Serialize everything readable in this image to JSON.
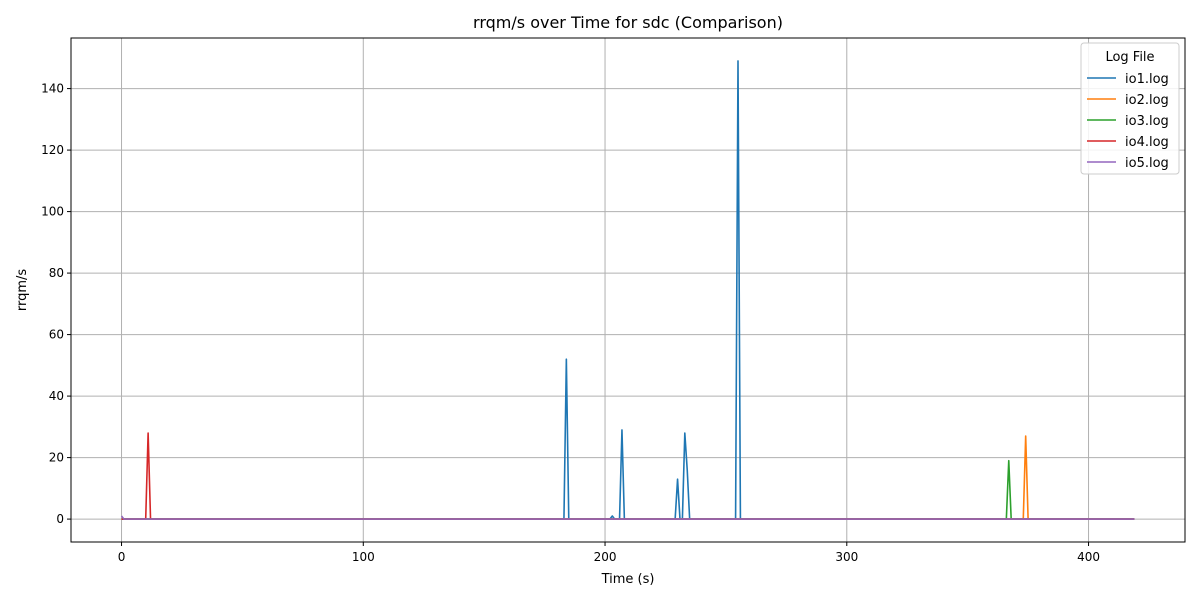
{
  "chart_data": {
    "type": "line",
    "title": "rrqm/s over Time for sdc (Comparison)",
    "xlabel": "Time (s)",
    "ylabel": "rrqm/s",
    "xlim": [
      -20.9,
      439.9
    ],
    "ylim": [
      -7.45,
      156.45
    ],
    "xticks": [
      0,
      100,
      200,
      300,
      400
    ],
    "yticks": [
      0,
      20,
      40,
      60,
      80,
      100,
      120,
      140
    ],
    "grid": true,
    "legend": {
      "title": "Log File",
      "placement": "top-right"
    },
    "series": [
      {
        "name": "io1.log",
        "color": "#1f77b4",
        "x": [
          0,
          183,
          184,
          185,
          202,
          203,
          204,
          206,
          207,
          208,
          229,
          230,
          231,
          232,
          233,
          234,
          235,
          254,
          255,
          256,
          419
        ],
        "y": [
          0,
          0,
          52,
          0,
          0,
          1,
          0,
          0,
          29,
          0,
          0,
          13,
          0,
          0,
          28,
          16,
          0,
          0,
          149,
          0,
          0
        ]
      },
      {
        "name": "io2.log",
        "color": "#ff7f0e",
        "x": [
          0,
          373,
          374,
          375,
          419
        ],
        "y": [
          0,
          0,
          27,
          0,
          0
        ]
      },
      {
        "name": "io3.log",
        "color": "#2ca02c",
        "x": [
          0,
          366,
          367,
          368,
          419
        ],
        "y": [
          0,
          0,
          19,
          0,
          0
        ]
      },
      {
        "name": "io4.log",
        "color": "#d62728",
        "x": [
          0,
          10,
          11,
          12,
          419
        ],
        "y": [
          0,
          0,
          28,
          0,
          0
        ]
      },
      {
        "name": "io5.log",
        "color": "#9467bd",
        "x": [
          0,
          1,
          419
        ],
        "y": [
          1,
          0,
          0
        ]
      }
    ]
  }
}
